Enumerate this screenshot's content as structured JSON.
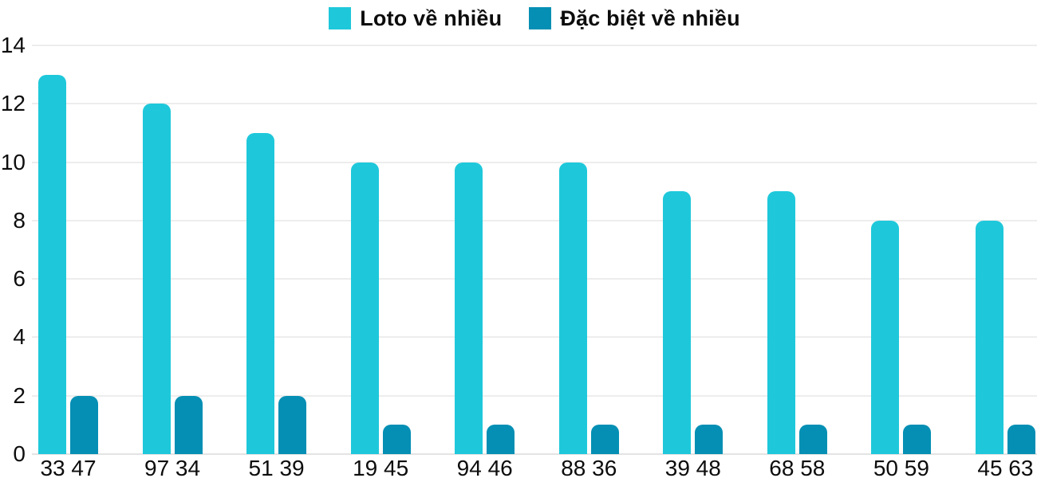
{
  "chart_data": {
    "type": "bar",
    "title": "",
    "categories": [
      "33 47",
      "97 34",
      "51 39",
      "19 45",
      "94 46",
      "88 36",
      "39 48",
      "68 58",
      "50 59",
      "45 63"
    ],
    "series": [
      {
        "name": "Loto về nhiều",
        "color": "#1EC8DA",
        "values": [
          13,
          12,
          11,
          10,
          10,
          10,
          9,
          9,
          8,
          8
        ]
      },
      {
        "name": "Đặc biệt về nhiều",
        "color": "#058FB4",
        "values": [
          2,
          2,
          2,
          1,
          1,
          1,
          1,
          1,
          1,
          1
        ]
      }
    ],
    "xlabel": "",
    "ylabel": "",
    "ylim": [
      0,
      14
    ],
    "yticks": [
      0,
      2,
      4,
      6,
      8,
      10,
      12,
      14
    ],
    "grid": true,
    "legend_position": "top",
    "background_color": "#FFFFFF",
    "gridline_color": "#EDEDED",
    "axis_text_color": "#0D0D0D"
  }
}
